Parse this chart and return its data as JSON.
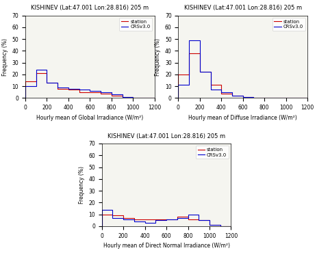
{
  "title": "KISHINEV (Lat:47.001 Lon:28.816) 205 m",
  "legend_station": "station",
  "legend_crs": "CRSv3.0",
  "ylabel": "Frequency (%)",
  "xlim": [
    0,
    1200
  ],
  "ylim": [
    0,
    70
  ],
  "yticks": [
    0,
    10,
    20,
    30,
    40,
    50,
    60,
    70
  ],
  "xticks": [
    0,
    200,
    400,
    600,
    800,
    1000,
    1200
  ],
  "color_station": "#CC0000",
  "color_crs": "#0000CC",
  "bg_color": "#f5f5f0",
  "global_xlabel": "Hourly mean of Global Irradiance (W/m²)",
  "global_bin_edges": [
    0,
    100,
    200,
    300,
    400,
    500,
    600,
    700,
    800,
    900,
    1000,
    1100,
    1200
  ],
  "global_station": [
    14,
    21,
    13,
    8,
    7,
    5,
    5,
    4,
    2,
    1,
    0,
    0
  ],
  "global_crs": [
    10,
    24,
    13,
    9,
    8,
    7,
    6,
    5,
    3,
    1,
    0,
    0
  ],
  "diffuse_xlabel": "Hourly mean of Diffuse Irradiance (W/m²)",
  "diffuse_bin_edges": [
    0,
    100,
    200,
    300,
    400,
    500,
    600,
    700,
    800,
    900,
    1000,
    1100,
    1200
  ],
  "diffuse_station": [
    20,
    38,
    22,
    11,
    4,
    2,
    1,
    0,
    0,
    0,
    0,
    0
  ],
  "diffuse_crs": [
    11,
    49,
    22,
    7,
    5,
    2,
    1,
    0,
    0,
    0,
    0,
    0
  ],
  "direct_xlabel": "Hourly mean of Direct Normal Irradiance (W/m²)",
  "direct_bin_edges": [
    0,
    100,
    200,
    300,
    400,
    500,
    600,
    700,
    800,
    900,
    1000,
    1100,
    1200
  ],
  "direct_station": [
    10,
    9,
    7,
    6,
    6,
    6,
    6,
    8,
    6,
    5,
    1,
    0
  ],
  "direct_crs": [
    14,
    7,
    6,
    4,
    3,
    5,
    6,
    7,
    10,
    5,
    1,
    0
  ]
}
